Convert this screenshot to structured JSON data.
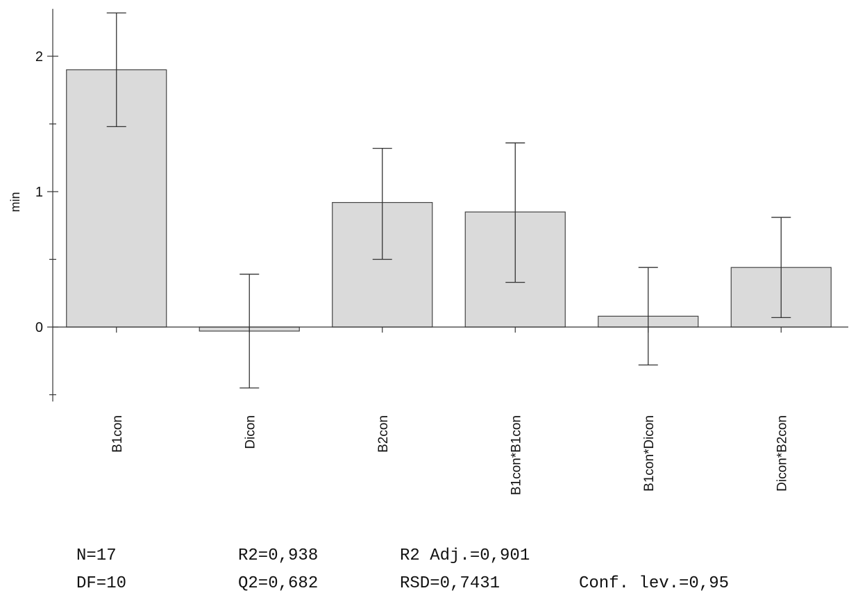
{
  "chart_data": {
    "type": "bar",
    "ylabel": "min",
    "ylim": [
      -0.55,
      2.35
    ],
    "yticks_major": [
      0,
      1,
      2
    ],
    "yticks_minor": [
      -0.5,
      0.5,
      1.5
    ],
    "categories": [
      "B1con",
      "Dicon",
      "B2con",
      "B1con*B1con",
      "B1con*Dicon",
      "Dicon*B2con"
    ],
    "values": [
      1.9,
      -0.03,
      0.92,
      0.85,
      0.08,
      0.44
    ],
    "error_low": [
      1.48,
      -0.45,
      0.5,
      0.33,
      -0.28,
      0.07
    ],
    "error_high": [
      2.32,
      0.39,
      1.32,
      1.36,
      0.44,
      0.81
    ],
    "bar_color": "#dadada",
    "grid": false,
    "legend": "none"
  },
  "stats": {
    "n": "N=17",
    "r2": "R2=0,938",
    "r2_adj": "R2 Adj.=0,901",
    "df": "DF=10",
    "q2": "Q2=0,682",
    "rsd": "RSD=0,7431",
    "conf": "Conf. lev.=0,95"
  }
}
